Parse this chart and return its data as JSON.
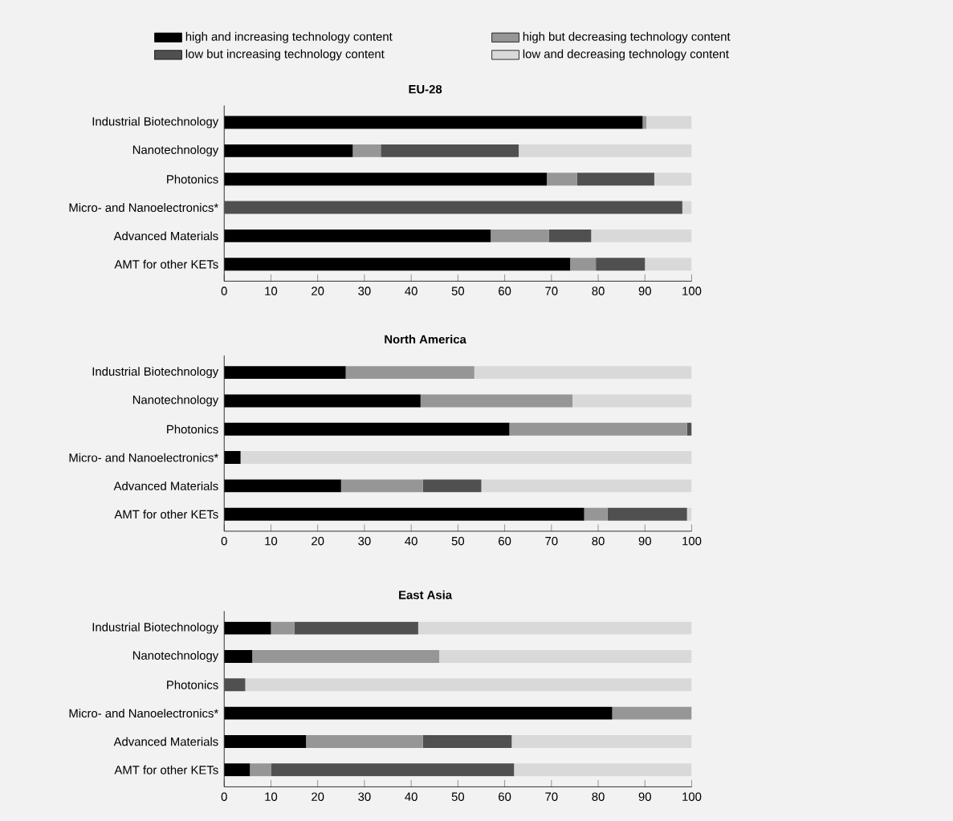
{
  "chart_data": [
    {
      "type": "bar",
      "orientation": "horizontal",
      "stacked": true,
      "title": "EU-28",
      "legend": "top",
      "categories": [
        "Industrial Biotechnology",
        "Nanotechnology",
        "Photonics",
        "Micro- and Nanoelectronics*",
        "Advanced Materials",
        "AMT for other KETs"
      ],
      "xlim": [
        0,
        100
      ],
      "xticks": [
        0,
        10,
        20,
        30,
        40,
        50,
        60,
        70,
        80,
        90,
        100
      ],
      "series": [
        {
          "name": "high and increasing technology content",
          "color": "#000000",
          "values": [
            89.5,
            27.5,
            69,
            0,
            57,
            74
          ]
        },
        {
          "name": "high but decreasing technology content",
          "color": "#969696",
          "values": [
            0.8,
            6,
            6.5,
            0,
            12.5,
            5.5
          ]
        },
        {
          "name": "low but increasing technology content",
          "color": "#505050",
          "values": [
            0,
            29.5,
            16.5,
            98,
            9,
            10.5
          ]
        },
        {
          "name": "low and decreasing technology content",
          "color": "#d9d9d9",
          "values": [
            9.7,
            37,
            8,
            2,
            21.5,
            10
          ]
        }
      ]
    },
    {
      "type": "bar",
      "orientation": "horizontal",
      "stacked": true,
      "title": "North America",
      "categories": [
        "Industrial Biotechnology",
        "Nanotechnology",
        "Photonics",
        "Micro- and Nanoelectronics*",
        "Advanced Materials",
        "AMT for other KETs"
      ],
      "xlim": [
        0,
        100
      ],
      "xticks": [
        0,
        10,
        20,
        30,
        40,
        50,
        60,
        70,
        80,
        90,
        100
      ],
      "series": [
        {
          "color": "#000000",
          "values": [
            26,
            42,
            61,
            3.5,
            25,
            77
          ]
        },
        {
          "color": "#969696",
          "values": [
            27.5,
            32.5,
            38,
            0,
            17.5,
            5
          ]
        },
        {
          "color": "#505050",
          "values": [
            0,
            0,
            1,
            0,
            12.5,
            17
          ]
        },
        {
          "color": "#d9d9d9",
          "values": [
            46.5,
            25.5,
            0,
            96.5,
            45,
            1
          ]
        }
      ]
    },
    {
      "type": "bar",
      "orientation": "horizontal",
      "stacked": true,
      "title": "East Asia",
      "categories": [
        "Industrial Biotechnology",
        "Nanotechnology",
        "Photonics",
        "Micro- and Nanoelectronics*",
        "Advanced Materials",
        "AMT for other KETs"
      ],
      "xlim": [
        0,
        100
      ],
      "xticks": [
        0,
        10,
        20,
        30,
        40,
        50,
        60,
        70,
        80,
        90,
        100
      ],
      "series": [
        {
          "color": "#000000",
          "values": [
            10,
            6,
            0,
            83,
            17.5,
            5.5
          ]
        },
        {
          "color": "#969696",
          "values": [
            5,
            40,
            0,
            17,
            25,
            4.5
          ]
        },
        {
          "color": "#505050",
          "values": [
            26.5,
            0,
            4.5,
            0,
            19,
            52
          ]
        },
        {
          "color": "#d9d9d9",
          "values": [
            58.5,
            54,
            95.5,
            0,
            38.5,
            38
          ]
        }
      ]
    }
  ]
}
